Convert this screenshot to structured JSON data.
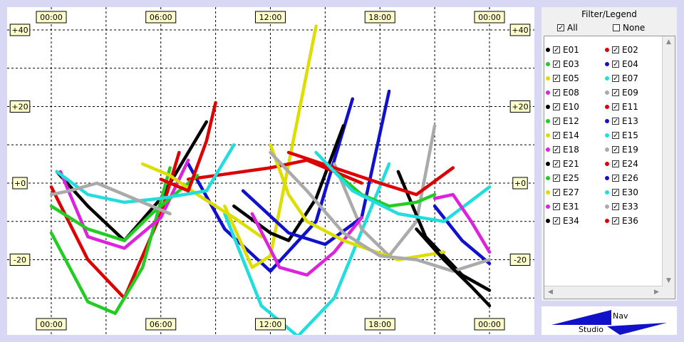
{
  "chart_data": {
    "type": "line",
    "x_ticks": [
      "00:00",
      "06:00",
      "12:00",
      "18:00",
      "00:00"
    ],
    "y_ticks": [
      "+40",
      "+20",
      "+0",
      "-20",
      "-40"
    ],
    "xlim": [
      0,
      24
    ],
    "ylim": [
      -40,
      40
    ],
    "grid": true,
    "series": [
      {
        "name": "E01",
        "color": "#000000",
        "x": [
          0.3,
          2,
          4,
          6,
          8.5
        ],
        "y": [
          3,
          -6,
          -15,
          -4,
          16
        ]
      },
      {
        "name": "E02",
        "color": "#dd0000",
        "x": [
          0,
          2,
          4,
          6,
          7
        ],
        "y": [
          -1,
          -20,
          -30,
          -8,
          8
        ]
      },
      {
        "name": "E03",
        "color": "#22cc22",
        "x": [
          0,
          2,
          3.5,
          5,
          6.5
        ],
        "y": [
          -13,
          -31,
          -34,
          -22,
          4
        ]
      },
      {
        "name": "E04",
        "color": "#1111cc",
        "x": [
          7.5,
          9.5,
          12,
          14.5,
          16.5
        ],
        "y": [
          5,
          -12,
          -23,
          -10,
          22
        ]
      },
      {
        "name": "E05",
        "color": "#dddd00",
        "x": [
          9.5,
          11,
          12,
          13,
          14.5
        ],
        "y": [
          -6,
          -22,
          -19,
          5,
          41
        ]
      },
      {
        "name": "E07",
        "color": "#22dddd",
        "x": [
          9.5,
          11.5,
          13.5,
          15.5,
          18.5
        ],
        "y": [
          -8,
          -32,
          -40,
          -30,
          5
        ]
      },
      {
        "name": "E08",
        "color": "#dd22dd",
        "x": [
          0.5,
          2,
          4,
          6,
          7.5
        ],
        "y": [
          3,
          -14,
          -17,
          -9,
          6
        ]
      },
      {
        "name": "E09",
        "color": "#aaaaaa",
        "x": [
          15.5,
          17,
          18.5,
          20,
          21
        ],
        "y": [
          5,
          -12,
          -19,
          -10,
          15
        ]
      },
      {
        "name": "E10",
        "color": "#000000",
        "x": [
          10,
          12,
          13,
          14.5,
          16
        ],
        "y": [
          -6,
          -13,
          -15,
          -4,
          15
        ]
      },
      {
        "name": "E11",
        "color": "#dd0000",
        "x": [
          7.5,
          9,
          12,
          14,
          17
        ],
        "y": [
          1,
          2,
          4,
          6,
          0
        ]
      },
      {
        "name": "E12",
        "color": "#22cc22",
        "x": [
          0,
          2,
          4,
          5.5,
          8
        ],
        "y": [
          -6,
          -12,
          -15,
          -8,
          2
        ]
      },
      {
        "name": "E13",
        "color": "#1111cc",
        "x": [
          10.5,
          13,
          15,
          17,
          18.5
        ],
        "y": [
          -2,
          -13,
          -16,
          -9,
          24
        ]
      },
      {
        "name": "E14",
        "color": "#dddd00",
        "x": [
          5,
          6.5,
          8,
          10,
          11.5
        ],
        "y": [
          5,
          2,
          -3,
          -9,
          -14
        ]
      },
      {
        "name": "E15",
        "color": "#22dddd",
        "x": [
          0.3,
          2,
          4,
          6,
          8.5,
          10
        ],
        "y": [
          3,
          -3,
          -5,
          -4,
          -2,
          10
        ]
      },
      {
        "name": "E18",
        "color": "#dd22dd",
        "x": [
          11,
          12.5,
          14,
          15.5,
          17
        ],
        "y": [
          -8,
          -22,
          -24,
          -18,
          -9
        ]
      },
      {
        "name": "E19",
        "color": "#aaaaaa",
        "x": [
          0,
          1,
          2.5,
          4.5,
          6.5
        ],
        "y": [
          -3,
          -2,
          0,
          -4,
          -8
        ]
      },
      {
        "name": "E21",
        "color": "#000000",
        "x": [
          19,
          20.5,
          22.5,
          24
        ],
        "y": [
          3,
          -14,
          -24,
          -28
        ]
      },
      {
        "name": "E24",
        "color": "#dd0000",
        "x": [
          13,
          15.5,
          18,
          20,
          22
        ],
        "y": [
          8,
          4,
          0,
          -3,
          4
        ]
      },
      {
        "name": "E25",
        "color": "#22cc22",
        "x": [
          15.5,
          17,
          18.5,
          20,
          21
        ],
        "y": [
          3,
          -3,
          -6,
          -5,
          -3
        ]
      },
      {
        "name": "E26",
        "color": "#1111cc",
        "x": [
          21,
          22.5,
          24
        ],
        "y": [
          -6,
          -15,
          -21
        ]
      },
      {
        "name": "E27",
        "color": "#dddd00",
        "x": [
          12,
          13,
          14,
          16,
          19,
          21.5
        ],
        "y": [
          10,
          -3,
          -10,
          -15,
          -20,
          -18
        ]
      },
      {
        "name": "E30",
        "color": "#22dddd",
        "x": [
          14.5,
          16.5,
          19,
          21.5,
          24
        ],
        "y": [
          8,
          -2,
          -8,
          -10,
          -1
        ]
      },
      {
        "name": "E31",
        "color": "#dd22dd",
        "x": [
          21,
          22,
          23,
          24
        ],
        "y": [
          -4,
          -3,
          -10,
          -18
        ]
      },
      {
        "name": "E33",
        "color": "#aaaaaa",
        "x": [
          12,
          14,
          16,
          18,
          20,
          22,
          24
        ],
        "y": [
          8,
          -2,
          -13,
          -19,
          -20,
          -23,
          -20
        ]
      },
      {
        "name": "E34",
        "color": "#000000",
        "x": [
          20,
          21.5,
          23,
          24
        ],
        "y": [
          -12,
          -20,
          -27,
          -32
        ]
      },
      {
        "name": "E36",
        "color": "#dd0000",
        "x": [
          6,
          7.5,
          8.5,
          9
        ],
        "y": [
          1,
          -2,
          11,
          21
        ]
      }
    ]
  },
  "legend": {
    "title": "Filter/Legend",
    "all_label": "All",
    "none_label": "None",
    "check_mark": "✓"
  },
  "logo": {
    "top_text": "Nav",
    "bottom_text": "Studio"
  }
}
